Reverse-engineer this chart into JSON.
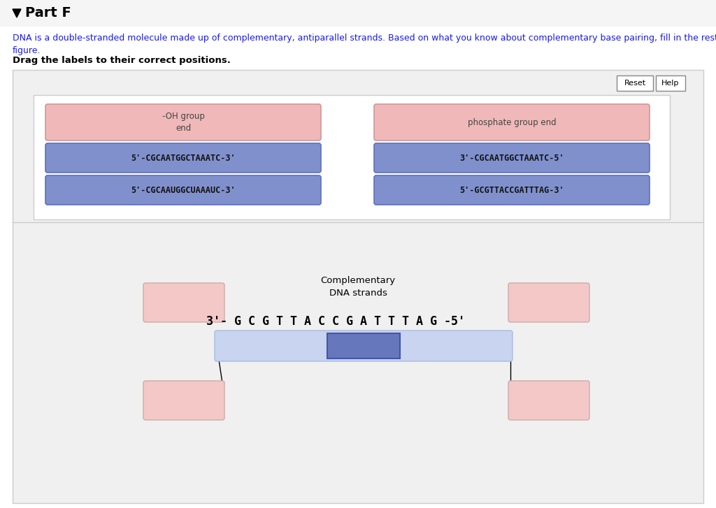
{
  "title": "Part F",
  "subtitle_text": "DNA is a double-stranded molecule made up of complementary, antiparallel strands. Based on what you know about complementary base pairing, fill in the rest of the details in the\nfigure.",
  "drag_label": "Drag the labels to their correct positions.",
  "label_boxes": [
    {
      "text": "-OH group\nend",
      "color": "#f0b8b8",
      "border": "#cc9999"
    },
    {
      "text": "phosphate group end",
      "color": "#f0b8b8",
      "border": "#cc9999"
    },
    {
      "text": "5'-CGCAATGGCTAAATC-3'",
      "color": "#8090cc",
      "border": "#6070bb"
    },
    {
      "text": "3'-CGCAATGGCTAAATC-5'",
      "color": "#8090cc",
      "border": "#6070bb"
    },
    {
      "text": "5'-CGCAAUGGCUAAAUC-3'",
      "color": "#8090cc",
      "border": "#6070bb"
    },
    {
      "text": "5'-GCGTTACCGATTTAG-3'",
      "color": "#8090cc",
      "border": "#6070bb"
    }
  ],
  "dna_sequence": "3'- G C G T T A C C G A T T T A G -5'",
  "complementary_label": "Complementary\nDNA strands",
  "strand_bar_color": "#c8d4f0",
  "strand_bar_border": "#aabbdd",
  "center_box_color": "#6677bb",
  "center_box_border": "#4455aa",
  "small_box_color": "#f5c8c8",
  "small_box_border": "#ccaaaa",
  "page_bg": "#ffffff",
  "header_bg": "#f5f5f5",
  "outer_box_bg": "#f0f0f0",
  "outer_box_border": "#cccccc",
  "inner_box_bg": "#ffffff",
  "inner_box_border": "#cccccc"
}
